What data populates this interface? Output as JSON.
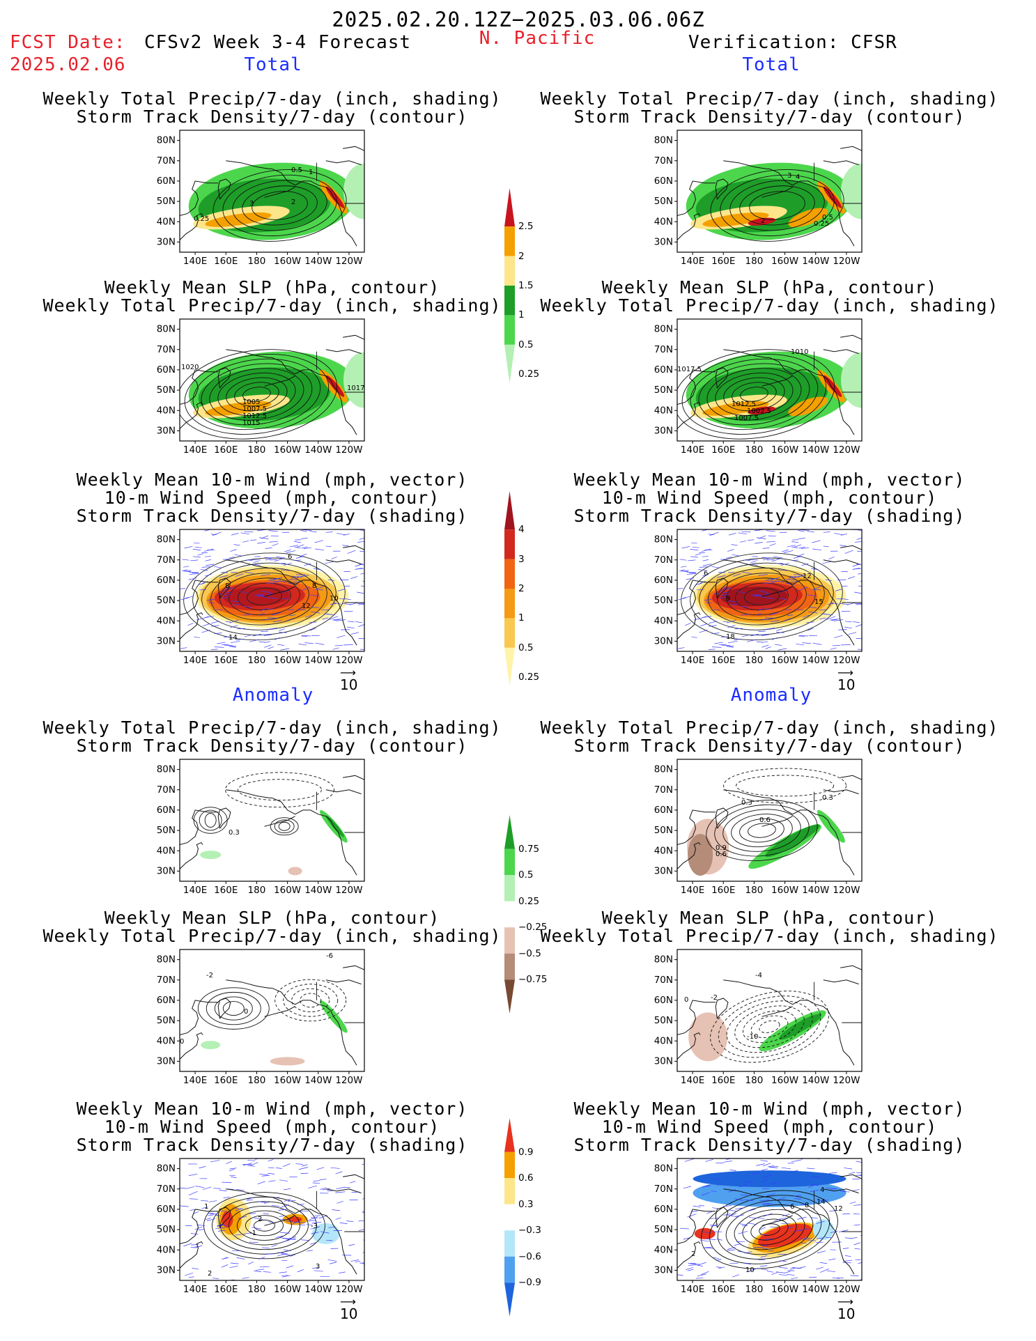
{
  "header": {
    "date_range": "2025.02.20.12Z−2025.03.06.06Z",
    "fcst_label": "FCST Date:",
    "fcst_date": "2025.02.06",
    "model": "CFSv2 Week 3-4 Forecast",
    "region": "N. Pacific",
    "verification": "Verification: CFSR",
    "total_left": "Total",
    "total_right": "Total",
    "anomaly_left": "Anomaly",
    "anomaly_right": "Anomaly"
  },
  "panel_titles": {
    "precip_storm": [
      "Weekly Total Precip/7-day (inch, shading)",
      "Storm Track Density/7-day (contour)"
    ],
    "slp_precip": [
      "Weekly Mean SLP (hPa, contour)",
      "Weekly Total Precip/7-day (inch, shading)"
    ],
    "wind_storm": [
      "Weekly Mean 10-m Wind (mph, vector)",
      "10-m Wind Speed (mph, contour)",
      "Storm Track Density/7-day (shading)"
    ]
  },
  "axes": {
    "lat_labels": [
      "80N",
      "70N",
      "60N",
      "50N",
      "40N",
      "30N"
    ],
    "lon_labels": [
      "140E",
      "160E",
      "180",
      "160W",
      "140W",
      "120W"
    ]
  },
  "vector_ref": "10",
  "colorbars": {
    "precip_total": {
      "labels": [
        "2.5",
        "2",
        "1.5",
        "1",
        "0.5",
        "0.25"
      ],
      "colors": [
        "#c8141e",
        "#f4a000",
        "#fde68a",
        "#1e9e28",
        "#4cd64c",
        "#b4f0b4"
      ]
    },
    "storm_total": {
      "labels": [
        "4",
        "3",
        "2",
        "1",
        "0.5",
        "0.25"
      ],
      "colors": [
        "#a0141e",
        "#d2281e",
        "#f06414",
        "#f49a14",
        "#f8c850",
        "#fff3a8"
      ]
    },
    "precip_anom": {
      "labels": [
        "0.75",
        "0.5",
        "0.25",
        "−0.25",
        "−0.5",
        "−0.75"
      ],
      "colors": [
        "#1e9e28",
        "#4cd64c",
        "#b4f0b4",
        "#ffffff",
        "#e6c2b4",
        "#b48c78",
        "#784a32"
      ]
    },
    "storm_anom": {
      "labels": [
        "0.9",
        "0.6",
        "0.3",
        "−0.3",
        "−0.6",
        "−0.9"
      ],
      "colors": [
        "#e8321e",
        "#f4a000",
        "#fde68a",
        "#ffffff",
        "#b4e6fa",
        "#50a0f0",
        "#1e64dc"
      ]
    },
    "colors_note_precip": "green shading",
    "colors_note_storm": "orange/red shading"
  },
  "contour_labels": {
    "p1_left": [
      "0.5",
      "1",
      "3",
      "2",
      "0.25"
    ],
    "p1_right": [
      "3",
      "4",
      "2",
      "0.5",
      "0.25"
    ],
    "p2_left": [
      "1020",
      "1005",
      "1007.5",
      "1012.5",
      "1015",
      "1017"
    ],
    "p2_right": [
      "1010",
      "1017.5",
      "1012.5",
      "1007.5",
      "1002.5"
    ],
    "p3_left": [
      "6",
      "8",
      "8",
      "10",
      "12",
      "14"
    ],
    "p3_right": [
      "6",
      "9",
      "12",
      "15",
      "18"
    ],
    "p4_left": [
      "0.3"
    ],
    "p4_right": [
      "0.3",
      "0.3",
      "0.6",
      "0.9",
      "0.6"
    ],
    "p5_left": [
      "-6",
      "-2",
      "0",
      "0"
    ],
    "p5_right": [
      "0",
      "-2",
      "-4",
      "-10"
    ],
    "p6_left": [
      "1",
      "2",
      "-1",
      "-3",
      "3",
      "2"
    ],
    "p6_right": [
      "4",
      "6",
      "8",
      "14",
      "12",
      "2",
      "10"
    ]
  }
}
